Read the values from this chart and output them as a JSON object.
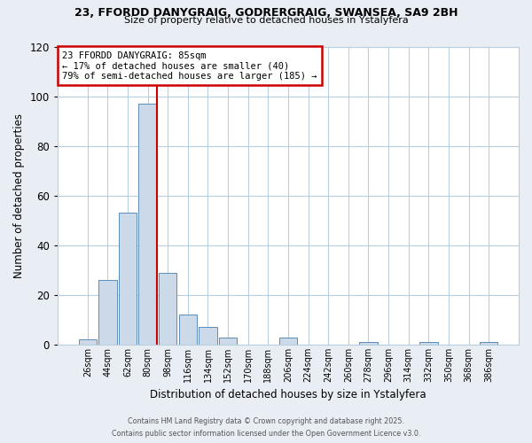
{
  "title1": "23, FFORDD DANYGRAIG, GODRERGRAIG, SWANSEA, SA9 2BH",
  "title2": "Size of property relative to detached houses in Ystalyfera",
  "xlabel": "Distribution of detached houses by size in Ystalyfera",
  "ylabel": "Number of detached properties",
  "bar_labels": [
    "26sqm",
    "44sqm",
    "62sqm",
    "80sqm",
    "98sqm",
    "116sqm",
    "134sqm",
    "152sqm",
    "170sqm",
    "188sqm",
    "206sqm",
    "224sqm",
    "242sqm",
    "260sqm",
    "278sqm",
    "296sqm",
    "314sqm",
    "332sqm",
    "350sqm",
    "368sqm",
    "386sqm"
  ],
  "bar_values": [
    2,
    26,
    53,
    97,
    29,
    12,
    7,
    3,
    0,
    0,
    3,
    0,
    0,
    0,
    1,
    0,
    0,
    1,
    0,
    0,
    1
  ],
  "bar_color": "#ccd9e8",
  "bar_edge_color": "#5b8db8",
  "ylim": [
    0,
    120
  ],
  "yticks": [
    0,
    20,
    40,
    60,
    80,
    100,
    120
  ],
  "vline_color": "#cc0000",
  "annotation_title": "23 FFORDD DANYGRAIG: 85sqm",
  "annotation_line2": "← 17% of detached houses are smaller (40)",
  "annotation_line3": "79% of semi-detached houses are larger (185) →",
  "annotation_box_color": "#ffffff",
  "annotation_border_color": "#cc0000",
  "footer1": "Contains HM Land Registry data © Crown copyright and database right 2025.",
  "footer2": "Contains public sector information licensed under the Open Government Licence v3.0.",
  "bg_color": "#e8eef4",
  "plot_bg_color": "#ffffff",
  "grid_color": "#b8cfe0"
}
